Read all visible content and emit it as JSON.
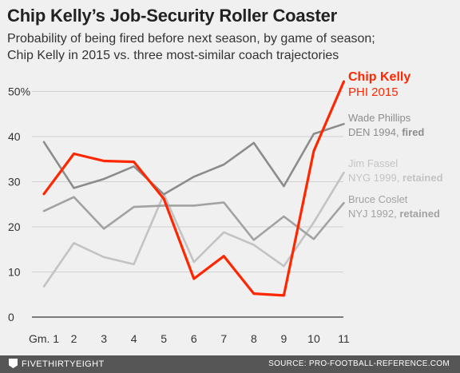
{
  "title": "Chip Kelly’s Job-Security Roller Coaster",
  "subtitle_lines": [
    "Probability of being fired before next season, by game of season;",
    "Chip Kelly in 2015 vs. three most-similar coach trajectories"
  ],
  "footer": {
    "brand": "FIVETHIRTYEIGHT",
    "source": "SOURCE: PRO-FOOTBALL-REFERENCE.COM"
  },
  "chart_data": {
    "type": "line",
    "title": "Chip Kelly’s Job-Security Roller Coaster",
    "xlabel": "",
    "ylabel": "",
    "x": [
      1,
      2,
      3,
      4,
      5,
      6,
      7,
      8,
      9,
      10,
      11
    ],
    "x_tick_labels": [
      "Gm. 1",
      "2",
      "3",
      "4",
      "5",
      "6",
      "7",
      "8",
      "9",
      "10",
      "11"
    ],
    "ylim": [
      0,
      55
    ],
    "y_ticks": [
      0,
      10,
      20,
      30,
      40,
      50
    ],
    "y_tick_labels": [
      "0",
      "10",
      "20",
      "30",
      "40",
      "50%"
    ],
    "grid": "horizontal",
    "series": [
      {
        "name": "Jim Fassel",
        "label_line2": "NYG 1999,",
        "outcome": "retained",
        "color": "#c3c3c3",
        "values": [
          6.8,
          16.4,
          13.3,
          11.7,
          27.2,
          12.2,
          18.8,
          16.0,
          11.3,
          21.0,
          32.0
        ]
      },
      {
        "name": "Bruce Coslet",
        "label_line2": "NYJ 1992,",
        "outcome": "retained",
        "color": "#a2a2a2",
        "values": [
          23.5,
          26.6,
          19.6,
          24.4,
          24.7,
          24.7,
          25.4,
          17.1,
          22.3,
          17.3,
          25.3
        ]
      },
      {
        "name": "Wade Phillips",
        "label_line2": "DEN 1994,",
        "outcome": "fired",
        "color": "#8c8c8c",
        "values": [
          38.8,
          28.6,
          30.6,
          33.4,
          27.2,
          31.1,
          33.8,
          38.6,
          29.0,
          40.6,
          42.8
        ]
      },
      {
        "name": "Chip Kelly",
        "label_line2": "PHI 2015",
        "outcome": "",
        "color": "#ff2700",
        "values": [
          27.3,
          36.2,
          34.6,
          34.4,
          26.2,
          8.5,
          13.5,
          5.2,
          4.8,
          36.8,
          52.2
        ]
      }
    ]
  }
}
